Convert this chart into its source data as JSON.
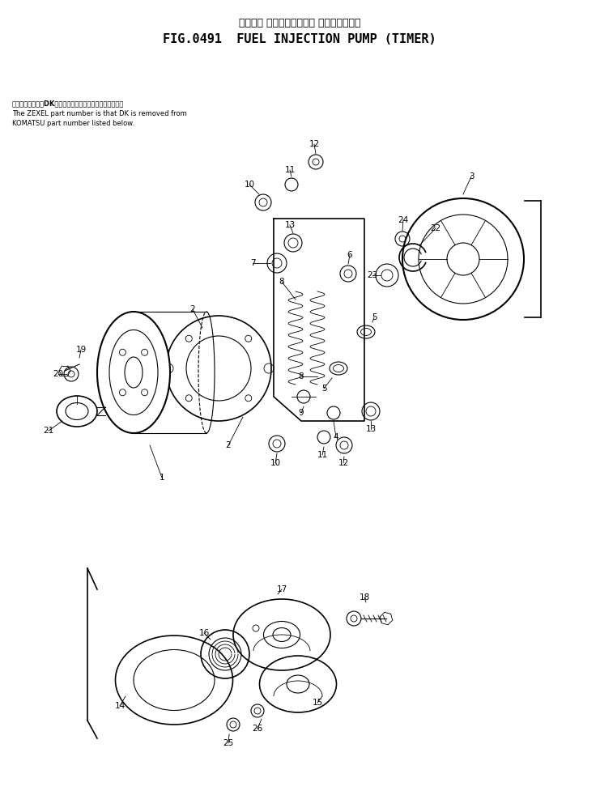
{
  "title_japanese": "フゥエル インジェクション ポンプ　タイマ",
  "title_english": "FIG.0491  FUEL INJECTION PUMP (TIMER)",
  "note_japanese": "品番のメーカ指定DKを除いたものがゼクセルの品番です。",
  "note_english1": "The ZEXEL part number is that DK is removed from",
  "note_english2": "KOMATSU part number listed below.",
  "bg_color": "#ffffff",
  "line_color": "#000000",
  "text_color": "#000000",
  "fig_width": 7.41,
  "fig_height": 9.82,
  "dpi": 100
}
